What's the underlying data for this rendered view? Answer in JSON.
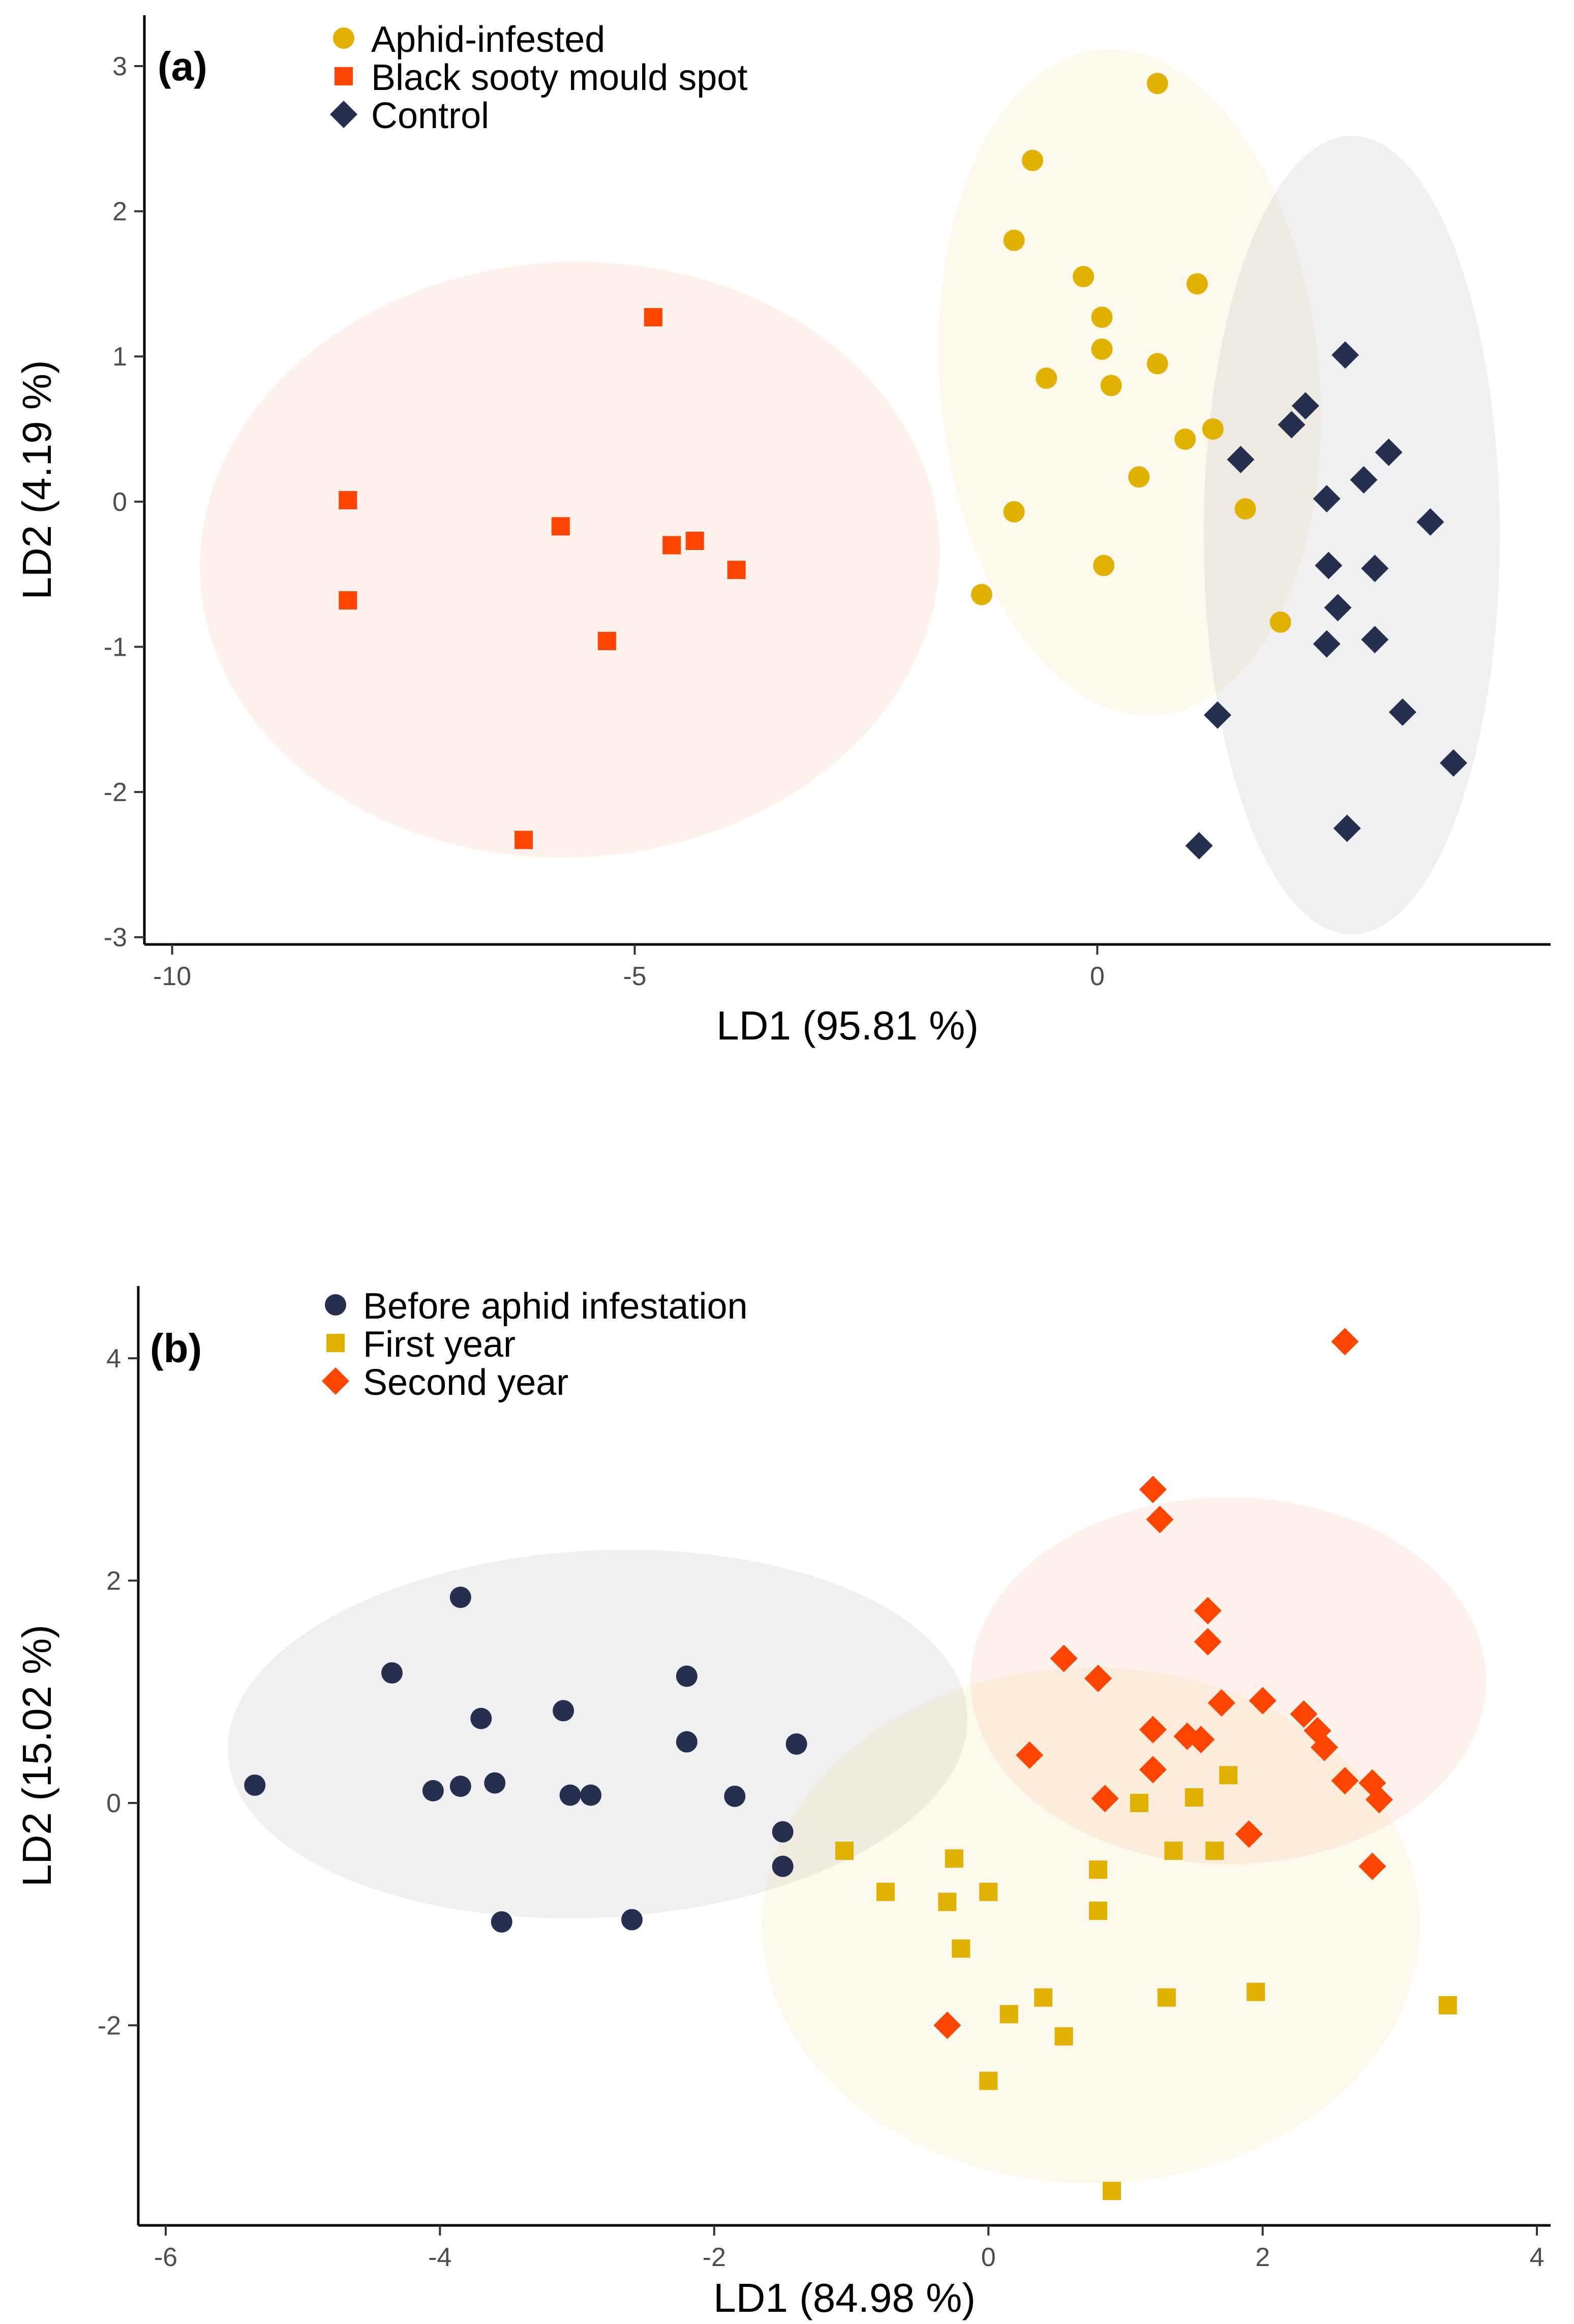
{
  "chart_data": [
    {
      "type": "scatter",
      "panel_label": "(a)",
      "xlabel": "LD1 (95.81 %)",
      "ylabel": "LD2 (4.19 %)",
      "xlim": [
        -10.3,
        4.9
      ],
      "ylim": [
        -3.05,
        3.35
      ],
      "xticks": [
        -10,
        -5,
        0
      ],
      "yticks": [
        -3,
        -2,
        -1,
        0,
        1,
        2,
        3
      ],
      "grid": false,
      "legend_position": "top-left",
      "series": [
        {
          "name": "Aphid-infested",
          "marker": "circle",
          "color": "#E1B100",
          "points": [
            [
              0.65,
              2.88
            ],
            [
              -0.7,
              2.35
            ],
            [
              -0.9,
              1.8
            ],
            [
              -0.15,
              1.55
            ],
            [
              1.08,
              1.5
            ],
            [
              0.05,
              1.27
            ],
            [
              0.05,
              1.05
            ],
            [
              0.65,
              0.95
            ],
            [
              -0.55,
              0.85
            ],
            [
              0.15,
              0.8
            ],
            [
              1.25,
              0.5
            ],
            [
              0.95,
              0.43
            ],
            [
              0.45,
              0.17
            ],
            [
              1.6,
              -0.05
            ],
            [
              -0.9,
              -0.07
            ],
            [
              0.07,
              -0.44
            ],
            [
              -1.25,
              -0.64
            ],
            [
              1.98,
              -0.83
            ]
          ]
        },
        {
          "name": "Black sooty mould spot",
          "marker": "square",
          "color": "#FF4500",
          "points": [
            [
              -4.8,
              1.27
            ],
            [
              -8.1,
              0.01
            ],
            [
              -5.8,
              -0.17
            ],
            [
              -4.6,
              -0.3
            ],
            [
              -4.35,
              -0.27
            ],
            [
              -3.9,
              -0.47
            ],
            [
              -8.1,
              -0.68
            ],
            [
              -5.3,
              -0.96
            ],
            [
              -6.2,
              -2.33
            ]
          ]
        },
        {
          "name": "Control",
          "marker": "diamond",
          "color": "#262F4D",
          "points": [
            [
              2.68,
              1.01
            ],
            [
              2.25,
              0.66
            ],
            [
              2.1,
              0.53
            ],
            [
              3.15,
              0.34
            ],
            [
              1.55,
              0.29
            ],
            [
              2.88,
              0.15
            ],
            [
              2.48,
              0.02
            ],
            [
              3.6,
              -0.14
            ],
            [
              2.5,
              -0.44
            ],
            [
              3.0,
              -0.46
            ],
            [
              2.6,
              -0.73
            ],
            [
              2.48,
              -0.98
            ],
            [
              3.0,
              -0.95
            ],
            [
              1.3,
              -1.47
            ],
            [
              3.3,
              -1.45
            ],
            [
              3.85,
              -1.8
            ],
            [
              2.7,
              -2.25
            ],
            [
              1.1,
              -2.37
            ]
          ]
        }
      ],
      "ellipses": [
        {
          "series": "Aphid-infested",
          "color": "#E1B100",
          "center": [
            0.35,
            0.82
          ],
          "rx": 2.05,
          "ry": 2.3,
          "angle_deg": 5
        },
        {
          "series": "Black sooty mould spot",
          "color": "#FF4500",
          "center": [
            -5.7,
            -0.4
          ],
          "rx": 4.0,
          "ry": 2.05,
          "angle_deg": 3
        },
        {
          "series": "Control",
          "color": "#262F4D",
          "center": [
            2.75,
            -0.23
          ],
          "rx": 1.6,
          "ry": 2.75,
          "angle_deg": 0
        }
      ]
    },
    {
      "type": "scatter",
      "panel_label": "(b)",
      "xlabel": "LD1 (84.98 %)",
      "ylabel": "LD2 (15.02 %)",
      "xlim": [
        -6.2,
        4.1
      ],
      "ylim": [
        -3.8,
        4.65
      ],
      "xticks": [
        -6,
        -4,
        -2,
        0,
        2,
        4
      ],
      "yticks": [
        -2,
        0,
        2,
        4
      ],
      "grid": false,
      "legend_position": "top-left",
      "series": [
        {
          "name": "Before aphid infestation",
          "marker": "circle",
          "color": "#262F4D",
          "points": [
            [
              -3.85,
              1.85
            ],
            [
              -4.35,
              1.17
            ],
            [
              -2.2,
              1.14
            ],
            [
              -3.7,
              0.76
            ],
            [
              -3.1,
              0.83
            ],
            [
              -2.2,
              0.55
            ],
            [
              -1.4,
              0.53
            ],
            [
              -5.35,
              0.16
            ],
            [
              -4.05,
              0.11
            ],
            [
              -3.85,
              0.15
            ],
            [
              -3.6,
              0.18
            ],
            [
              -3.05,
              0.07
            ],
            [
              -2.9,
              0.07
            ],
            [
              -1.85,
              0.06
            ],
            [
              -1.5,
              -0.26
            ],
            [
              -1.5,
              -0.57
            ],
            [
              -3.55,
              -1.07
            ],
            [
              -2.6,
              -1.05
            ]
          ]
        },
        {
          "name": "First year",
          "marker": "square",
          "color": "#E1B100",
          "points": [
            [
              1.75,
              0.25
            ],
            [
              1.1,
              0.0
            ],
            [
              1.5,
              0.05
            ],
            [
              -1.05,
              -0.43
            ],
            [
              1.35,
              -0.43
            ],
            [
              1.65,
              -0.43
            ],
            [
              -0.25,
              -0.5
            ],
            [
              0.8,
              -0.6
            ],
            [
              -0.75,
              -0.8
            ],
            [
              0.0,
              -0.8
            ],
            [
              -0.3,
              -0.89
            ],
            [
              0.8,
              -0.97
            ],
            [
              -0.2,
              -1.31
            ],
            [
              3.35,
              -1.82
            ],
            [
              1.95,
              -1.7
            ],
            [
              1.3,
              -1.75
            ],
            [
              0.4,
              -1.75
            ],
            [
              0.15,
              -1.9
            ],
            [
              0.55,
              -2.1
            ],
            [
              0.0,
              -2.5
            ],
            [
              0.9,
              -3.49
            ]
          ]
        },
        {
          "name": "Second year",
          "marker": "diamond",
          "color": "#FF4500",
          "points": [
            [
              2.6,
              4.15
            ],
            [
              1.2,
              2.82
            ],
            [
              1.25,
              2.55
            ],
            [
              1.6,
              1.73
            ],
            [
              1.6,
              1.45
            ],
            [
              0.55,
              1.3
            ],
            [
              0.8,
              1.12
            ],
            [
              1.7,
              0.9
            ],
            [
              2.0,
              0.92
            ],
            [
              2.3,
              0.8
            ],
            [
              1.2,
              0.66
            ],
            [
              2.4,
              0.65
            ],
            [
              1.45,
              0.6
            ],
            [
              1.55,
              0.57
            ],
            [
              2.45,
              0.5
            ],
            [
              0.3,
              0.43
            ],
            [
              1.2,
              0.3
            ],
            [
              2.6,
              0.2
            ],
            [
              2.8,
              0.18
            ],
            [
              0.85,
              0.04
            ],
            [
              2.85,
              0.03
            ],
            [
              1.9,
              -0.28
            ],
            [
              2.8,
              -0.57
            ],
            [
              -0.3,
              -2.0
            ]
          ]
        }
      ],
      "ellipses": [
        {
          "series": "Before aphid infestation",
          "color": "#262F4D",
          "center": [
            -2.85,
            0.62
          ],
          "rx": 2.7,
          "ry": 1.65,
          "angle_deg": 3
        },
        {
          "series": "First year",
          "color": "#E1B100",
          "center": [
            0.75,
            -1.1
          ],
          "rx": 2.4,
          "ry": 2.32,
          "angle_deg": 0
        },
        {
          "series": "Second year",
          "color": "#FF4500",
          "center": [
            1.75,
            1.1
          ],
          "rx": 1.88,
          "ry": 1.65,
          "angle_deg": 0
        }
      ]
    }
  ]
}
